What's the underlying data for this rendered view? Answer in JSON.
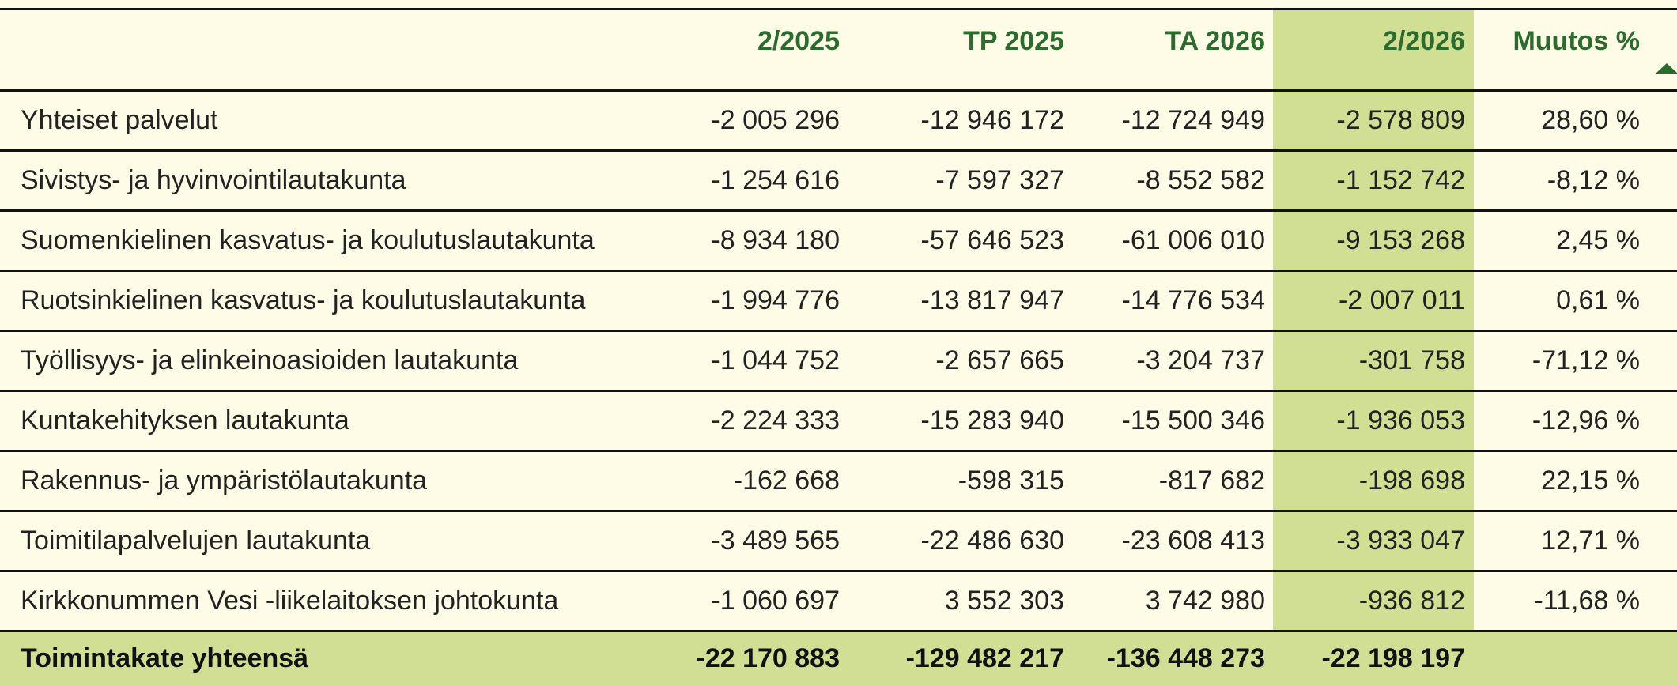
{
  "table": {
    "header": [
      "2/2025",
      "TP 2025",
      "TA 2026",
      "2/2026",
      "Muutos %"
    ],
    "rows": [
      [
        "Yhteiset palvelut",
        "-2 005 296",
        "-12 946 172",
        "-12 724 949",
        "-2 578 809",
        "28,60 %"
      ],
      [
        "Sivistys- ja hyvinvointilautakunta",
        "-1 254 616",
        "-7 597 327",
        "-8 552 582",
        "-1 152 742",
        "-8,12 %"
      ],
      [
        "Suomenkielinen kasvatus- ja koulutuslautakunta",
        "-8 934 180",
        "-57 646 523",
        "-61 006 010",
        "-9 153 268",
        "2,45 %"
      ],
      [
        "Ruotsinkielinen kasvatus- ja koulutuslautakunta",
        "-1 994 776",
        "-13 817 947",
        "-14 776 534",
        "-2 007 011",
        "0,61 %"
      ],
      [
        "Työllisyys- ja elinkeinoasioiden lautakunta",
        "-1 044 752",
        "-2 657 665",
        "-3 204 737",
        "-301 758",
        "-71,12 %"
      ],
      [
        "Kuntakehityksen lautakunta",
        "-2 224 333",
        "-15 283 940",
        "-15 500 346",
        "-1 936 053",
        "-12,96 %"
      ],
      [
        "Rakennus- ja ympäristölautakunta",
        "-162 668",
        "-598 315",
        "-817 682",
        "-198 698",
        "22,15 %"
      ],
      [
        "Toimitilapalvelujen lautakunta",
        "-3 489 565",
        "-22 486 630",
        "-23 608 413",
        "-3 933 047",
        "12,71 %"
      ],
      [
        "Kirkkonummen Vesi -liikelaitoksen johtokunta",
        "-1 060 697",
        "3 552 303",
        "3 742 980",
        "-936 812",
        "-11,68 %"
      ]
    ],
    "total": [
      "Toimintakate yhteensä",
      "-22 170 883",
      "-129 482 217",
      "-136 448 273",
      "-22 198 197"
    ]
  }
}
